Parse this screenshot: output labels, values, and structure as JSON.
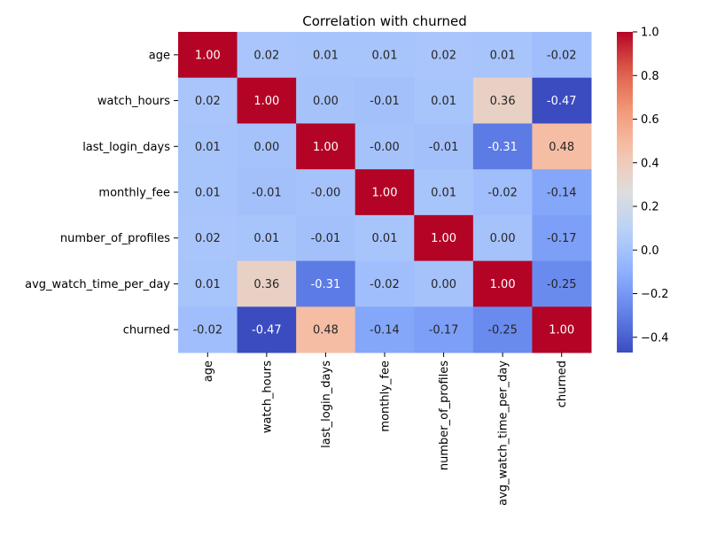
{
  "chart_data": {
    "type": "heatmap",
    "title": "Correlation with churned",
    "x_categories": [
      "age",
      "watch_hours",
      "last_login_days",
      "monthly_fee",
      "number_of_profiles",
      "avg_watch_time_per_day",
      "churned"
    ],
    "y_categories": [
      "age",
      "watch_hours",
      "last_login_days",
      "monthly_fee",
      "number_of_profiles",
      "avg_watch_time_per_day",
      "churned"
    ],
    "values": [
      [
        1.0,
        0.02,
        0.01,
        0.01,
        0.02,
        0.01,
        -0.02
      ],
      [
        0.02,
        1.0,
        0.0,
        -0.01,
        0.01,
        0.36,
        -0.47
      ],
      [
        0.01,
        0.0,
        1.0,
        -0.0,
        -0.01,
        -0.31,
        0.48
      ],
      [
        0.01,
        -0.01,
        -0.0,
        1.0,
        0.01,
        -0.02,
        -0.14
      ],
      [
        0.02,
        0.01,
        -0.01,
        0.01,
        1.0,
        0.0,
        -0.17
      ],
      [
        0.01,
        0.36,
        -0.31,
        -0.02,
        0.0,
        1.0,
        -0.25
      ],
      [
        -0.02,
        -0.47,
        0.48,
        -0.14,
        -0.17,
        -0.25,
        1.0
      ]
    ],
    "value_labels": [
      [
        "1.00",
        "0.02",
        "0.01",
        "0.01",
        "0.02",
        "0.01",
        "-0.02"
      ],
      [
        "0.02",
        "1.00",
        "0.00",
        "-0.01",
        "0.01",
        "0.36",
        "-0.47"
      ],
      [
        "0.01",
        "0.00",
        "1.00",
        "-0.00",
        "-0.01",
        "-0.31",
        "0.48"
      ],
      [
        "0.01",
        "-0.01",
        "-0.00",
        "1.00",
        "0.01",
        "-0.02",
        "-0.14"
      ],
      [
        "0.02",
        "0.01",
        "-0.01",
        "0.01",
        "1.00",
        "0.00",
        "-0.17"
      ],
      [
        "0.01",
        "0.36",
        "-0.31",
        "-0.02",
        "0.00",
        "1.00",
        "-0.25"
      ],
      [
        "-0.02",
        "-0.47",
        "0.48",
        "-0.14",
        "-0.17",
        "-0.25",
        "1.00"
      ]
    ],
    "colormap": "coolwarm",
    "color_range": [
      -0.47,
      1.0
    ],
    "colorbar_ticks": [
      1.0,
      0.8,
      0.6,
      0.4,
      0.2,
      0.0,
      -0.2,
      -0.4
    ],
    "colorbar_tick_labels": [
      "1.0",
      "0.8",
      "0.6",
      "0.4",
      "0.2",
      "0.0",
      "−0.2",
      "−0.4"
    ],
    "grid": false,
    "colorbar_position": "right"
  }
}
